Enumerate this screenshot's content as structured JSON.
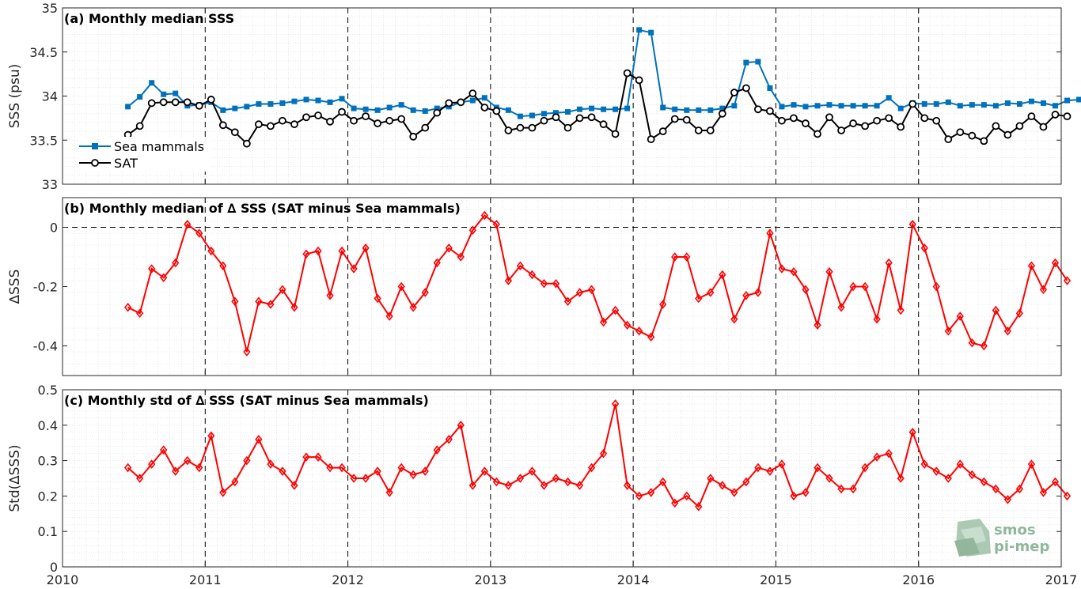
{
  "chart_data": [
    {
      "type": "line",
      "title": "(a) Monthly median SSS",
      "xlabel": "",
      "ylabel": "SSS (psu)",
      "xlim": [
        2010,
        2017
      ],
      "ylim": [
        33,
        35
      ],
      "x_ticks": [
        "2010",
        "2011",
        "2012",
        "2013",
        "2014",
        "2015",
        "2016",
        "2017"
      ],
      "y_ticks": [
        "33",
        "33.5",
        "34",
        "34.5",
        "35"
      ],
      "grid": true,
      "legend": "bottom-left",
      "x_start": "2010-06",
      "series": [
        {
          "name": "Sea mammals",
          "color": "#0072bd",
          "marker": "square",
          "values": [
            33.88,
            33.99,
            34.15,
            34.02,
            34.03,
            33.89,
            33.9,
            33.93,
            33.84,
            33.86,
            33.88,
            33.91,
            33.91,
            33.92,
            33.94,
            33.96,
            33.95,
            33.93,
            33.97,
            33.86,
            33.85,
            33.84,
            33.87,
            33.9,
            33.84,
            33.83,
            33.86,
            33.88,
            33.93,
            33.95,
            33.98,
            33.87,
            33.84,
            33.77,
            33.78,
            33.8,
            33.81,
            33.82,
            33.85,
            33.86,
            33.85,
            33.85,
            33.86,
            34.75,
            34.72,
            33.87,
            33.85,
            33.84,
            33.84,
            33.84,
            33.86,
            33.89,
            34.38,
            34.39,
            34.09,
            33.88,
            33.9,
            33.88,
            33.89,
            33.9,
            33.89,
            33.89,
            33.89,
            33.89,
            33.98,
            33.86,
            33.92,
            33.91,
            33.91,
            33.93,
            33.89,
            33.9,
            33.9,
            33.89,
            33.92,
            33.91,
            33.94,
            33.92,
            33.89,
            33.95,
            33.96
          ]
        },
        {
          "name": "SAT",
          "color": "#000000",
          "marker": "circle",
          "values": [
            33.56,
            33.66,
            33.92,
            33.93,
            33.93,
            33.93,
            33.89,
            33.96,
            33.67,
            33.59,
            33.46,
            33.68,
            33.66,
            33.72,
            33.68,
            33.76,
            33.78,
            33.71,
            33.82,
            33.72,
            33.77,
            33.69,
            33.72,
            33.74,
            33.54,
            33.64,
            33.81,
            33.92,
            33.93,
            34.03,
            33.87,
            33.83,
            33.61,
            33.64,
            33.64,
            33.72,
            33.76,
            33.64,
            33.75,
            33.76,
            33.68,
            33.57,
            34.26,
            34.18,
            33.51,
            33.6,
            33.74,
            33.73,
            33.61,
            33.61,
            33.8,
            34.04,
            34.09,
            33.85,
            33.83,
            33.72,
            33.75,
            33.69,
            33.57,
            33.76,
            33.61,
            33.69,
            33.66,
            33.72,
            33.75,
            33.65,
            33.91,
            33.75,
            33.72,
            33.51,
            33.59,
            33.55,
            33.49,
            33.66,
            33.56,
            33.66,
            33.77,
            33.65,
            33.79,
            33.77
          ]
        }
      ]
    },
    {
      "type": "line",
      "title": "(b) Monthly median of ∆ SSS (SAT minus Sea mammals)",
      "xlabel": "",
      "ylabel": "∆SSS",
      "xlim": [
        2010,
        2017
      ],
      "ylim": [
        -0.5,
        0.1
      ],
      "x_ticks": [
        "2010",
        "2011",
        "2012",
        "2013",
        "2014",
        "2015",
        "2016",
        "2017"
      ],
      "y_ticks": [
        "-0.4",
        "-0.2",
        "0"
      ],
      "grid": true,
      "x_start": "2010-06",
      "series": [
        {
          "color": "#ff0000",
          "marker": "diamond",
          "values": [
            -0.27,
            -0.29,
            -0.14,
            -0.17,
            -0.12,
            0.01,
            -0.02,
            -0.08,
            -0.13,
            -0.25,
            -0.42,
            -0.25,
            -0.26,
            -0.21,
            -0.27,
            -0.09,
            -0.08,
            -0.23,
            -0.08,
            -0.14,
            -0.07,
            -0.24,
            -0.3,
            -0.2,
            -0.27,
            -0.22,
            -0.12,
            -0.07,
            -0.1,
            -0.01,
            0.04,
            0.01,
            -0.18,
            -0.13,
            -0.16,
            -0.19,
            -0.19,
            -0.25,
            -0.22,
            -0.21,
            -0.32,
            -0.28,
            -0.33,
            -0.35,
            -0.37,
            -0.26,
            -0.1,
            -0.1,
            -0.24,
            -0.22,
            -0.16,
            -0.31,
            -0.23,
            -0.22,
            -0.02,
            -0.14,
            -0.15,
            -0.21,
            -0.33,
            -0.15,
            -0.27,
            -0.2,
            -0.2,
            -0.31,
            -0.12,
            -0.28,
            0.01,
            -0.07,
            -0.2,
            -0.35,
            -0.3,
            -0.39,
            -0.4,
            -0.28,
            -0.35,
            -0.29,
            -0.13,
            -0.21,
            -0.12,
            -0.18
          ]
        }
      ]
    },
    {
      "type": "line",
      "title": "(c) Monthly std of ∆ SSS (SAT minus Sea mammals)",
      "xlabel": "",
      "ylabel": "Std(∆SSS)",
      "xlim": [
        2010,
        2017
      ],
      "ylim": [
        0,
        0.5
      ],
      "x_ticks": [
        "2010",
        "2011",
        "2012",
        "2013",
        "2014",
        "2015",
        "2016",
        "2017"
      ],
      "y_ticks": [
        "0",
        "0.1",
        "0.2",
        "0.3",
        "0.4",
        "0.5"
      ],
      "grid": true,
      "x_start": "2010-06",
      "series": [
        {
          "color": "#ff0000",
          "marker": "diamond",
          "values": [
            0.28,
            0.25,
            0.29,
            0.33,
            0.27,
            0.3,
            0.28,
            0.37,
            0.21,
            0.24,
            0.3,
            0.36,
            0.29,
            0.27,
            0.23,
            0.31,
            0.31,
            0.28,
            0.28,
            0.25,
            0.25,
            0.27,
            0.21,
            0.28,
            0.26,
            0.27,
            0.33,
            0.36,
            0.4,
            0.23,
            0.27,
            0.24,
            0.23,
            0.25,
            0.27,
            0.23,
            0.25,
            0.24,
            0.23,
            0.28,
            0.32,
            0.46,
            0.23,
            0.2,
            0.21,
            0.24,
            0.18,
            0.2,
            0.17,
            0.25,
            0.23,
            0.21,
            0.24,
            0.28,
            0.27,
            0.29,
            0.2,
            0.21,
            0.28,
            0.25,
            0.22,
            0.22,
            0.28,
            0.31,
            0.32,
            0.25,
            0.38,
            0.29,
            0.27,
            0.25,
            0.29,
            0.26,
            0.24,
            0.22,
            0.19,
            0.22,
            0.29,
            0.21,
            0.24,
            0.2
          ]
        }
      ]
    }
  ],
  "logo": {
    "line1": "smos",
    "line2": "pi-mep",
    "color": "#8fb89a"
  }
}
